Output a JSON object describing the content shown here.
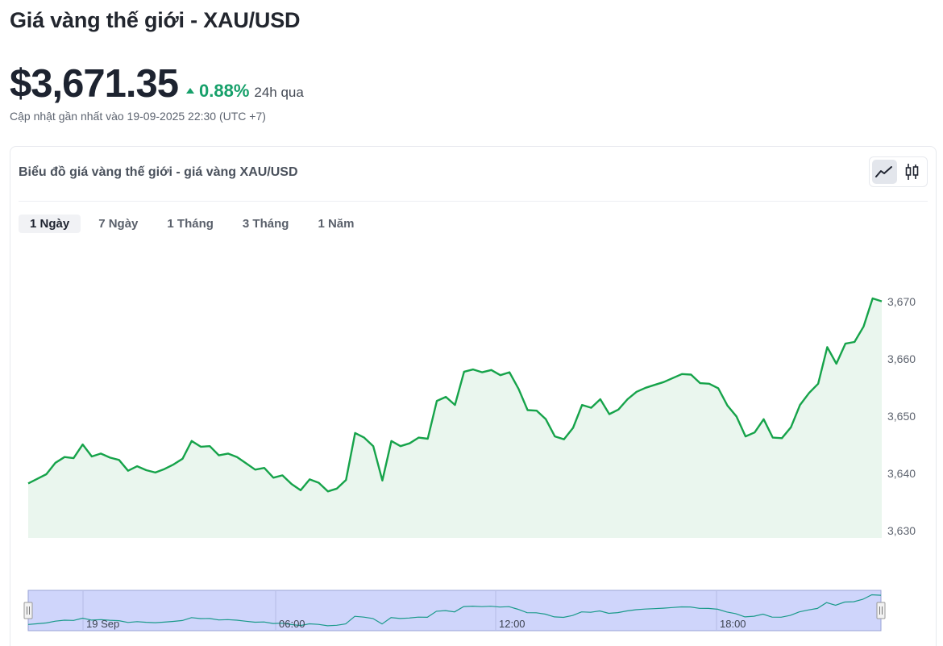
{
  "header": {
    "title": "Giá vàng thế giới - XAU/USD",
    "price": "$3,671.35",
    "change_pct": "0.88%",
    "change_period": "24h qua",
    "updated": "Cập nhật gần nhất vào 19-09-2025 22:30 (UTC +7)"
  },
  "card": {
    "title": "Biểu đồ giá vàng thế giới - giá vàng XAU/USD",
    "view_modes": [
      {
        "icon": "line-chart-icon",
        "active": true
      },
      {
        "icon": "candlestick-icon",
        "active": false
      }
    ],
    "tabs": [
      {
        "label": "1 Ngày",
        "active": true
      },
      {
        "label": "7 Ngày",
        "active": false
      },
      {
        "label": "1 Tháng",
        "active": false
      },
      {
        "label": "3 Tháng",
        "active": false
      },
      {
        "label": "1 Năm",
        "active": false
      }
    ]
  },
  "colors": {
    "accent_green": "#16a06a",
    "line": "#16a34a",
    "area_fill": "#eaf6ee",
    "navigator_fill": "#cfd5fb"
  },
  "chart_data": {
    "type": "area",
    "title": "",
    "ylim": [
      3630,
      3672
    ],
    "yticks": [
      3630,
      3640,
      3650,
      3660,
      3670
    ],
    "ytick_labels": [
      "3,630",
      "3,640",
      "3,650",
      "3,660",
      "3,670"
    ],
    "navigator_labels": [
      "19 Sep",
      "06:00",
      "12:00",
      "18:00"
    ],
    "values": [
      3638.4,
      3639.2,
      3640.0,
      3642.0,
      3643.0,
      3642.8,
      3645.2,
      3643.1,
      3643.6,
      3642.9,
      3642.5,
      3640.6,
      3641.4,
      3640.7,
      3640.3,
      3640.9,
      3641.7,
      3642.7,
      3645.8,
      3644.8,
      3644.9,
      3643.3,
      3643.6,
      3643.0,
      3641.9,
      3640.8,
      3641.1,
      3639.4,
      3639.8,
      3638.3,
      3637.2,
      3639.1,
      3638.5,
      3637.0,
      3637.5,
      3639.0,
      3647.2,
      3646.4,
      3644.9,
      3638.9,
      3645.8,
      3644.9,
      3645.4,
      3646.4,
      3646.2,
      3652.8,
      3653.5,
      3652.1,
      3657.9,
      3658.3,
      3657.8,
      3658.2,
      3657.3,
      3657.8,
      3654.9,
      3651.2,
      3651.1,
      3649.6,
      3646.6,
      3646.1,
      3648.1,
      3652.1,
      3651.6,
      3653.1,
      3650.5,
      3651.3,
      3653.1,
      3654.4,
      3655.1,
      3655.6,
      3656.1,
      3656.8,
      3657.5,
      3657.4,
      3655.9,
      3655.8,
      3655.0,
      3652.0,
      3650.1,
      3646.6,
      3647.3,
      3649.6,
      3646.4,
      3646.3,
      3648.2,
      3652.1,
      3654.2,
      3655.8,
      3662.2,
      3659.3,
      3662.8,
      3663.1,
      3665.8,
      3670.7,
      3670.2
    ]
  }
}
